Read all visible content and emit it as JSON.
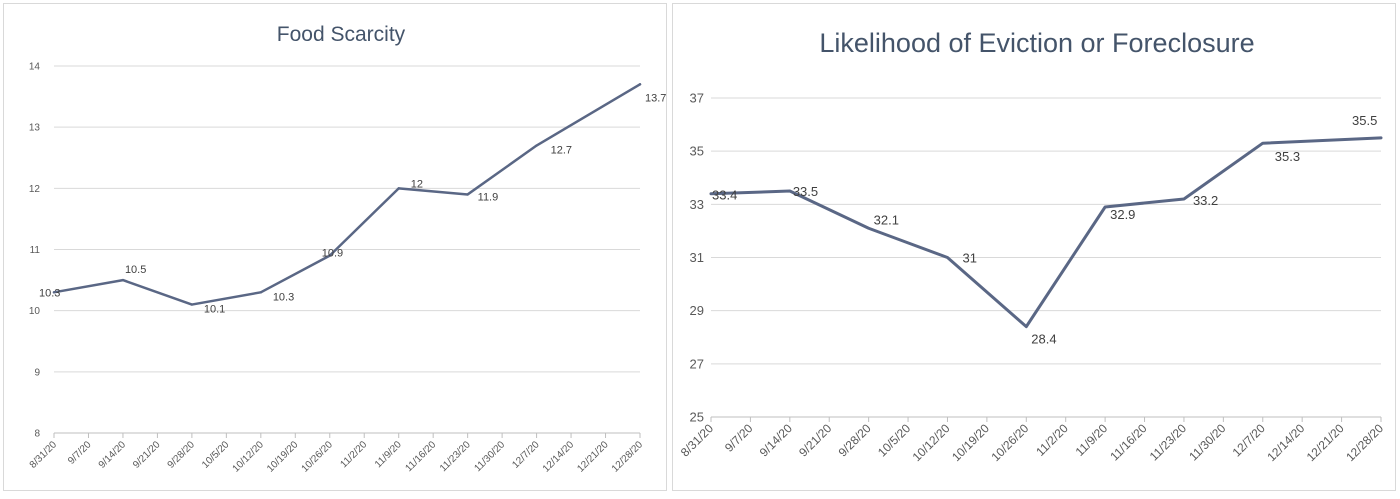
{
  "line_color": "#5a6785",
  "chart_data": [
    {
      "type": "line",
      "title": "Food Scarcity",
      "xlabel": "",
      "ylabel": "",
      "ylim": [
        8,
        14
      ],
      "yticks": [
        8,
        9,
        10,
        11,
        12,
        13,
        14
      ],
      "grid": true,
      "categories": [
        "8/31/20",
        "9/7/20",
        "9/14/20",
        "9/21/20",
        "9/28/20",
        "10/5/20",
        "10/12/20",
        "10/19/20",
        "10/26/20",
        "11/2/20",
        "11/9/20",
        "11/16/20",
        "11/23/20",
        "11/30/20",
        "12/7/20",
        "12/14/20",
        "12/21/20",
        "12/28/20"
      ],
      "points": [
        {
          "x": "8/31/20",
          "y": 10.3,
          "label": "10.3"
        },
        {
          "x": "9/14/20",
          "y": 10.5,
          "label": "10.5"
        },
        {
          "x": "9/28/20",
          "y": 10.1,
          "label": "10.1"
        },
        {
          "x": "10/12/20",
          "y": 10.3,
          "label": "10.3"
        },
        {
          "x": "10/26/20",
          "y": 10.9,
          "label": "10.9"
        },
        {
          "x": "11/9/20",
          "y": 12,
          "label": "12"
        },
        {
          "x": "11/23/20",
          "y": 11.9,
          "label": "11.9"
        },
        {
          "x": "12/7/20",
          "y": 12.7,
          "label": "12.7"
        },
        {
          "x": "12/28/20",
          "y": 13.7,
          "label": "13.7"
        }
      ]
    },
    {
      "type": "line",
      "title": "Likelihood of Eviction or Foreclosure",
      "xlabel": "",
      "ylabel": "",
      "ylim": [
        25,
        37
      ],
      "yticks": [
        25,
        27,
        29,
        31,
        33,
        35,
        37
      ],
      "grid": true,
      "categories": [
        "8/31/20",
        "9/7/20",
        "9/14/20",
        "9/21/20",
        "9/28/20",
        "10/5/20",
        "10/12/20",
        "10/19/20",
        "10/26/20",
        "11/2/20",
        "11/9/20",
        "11/16/20",
        "11/23/20",
        "11/30/20",
        "12/7/20",
        "12/14/20",
        "12/21/20",
        "12/28/20"
      ],
      "points": [
        {
          "x": "8/31/20",
          "y": 33.4,
          "label": "33.4"
        },
        {
          "x": "9/14/20",
          "y": 33.5,
          "label": "33.5"
        },
        {
          "x": "9/28/20",
          "y": 32.1,
          "label": "32.1"
        },
        {
          "x": "10/12/20",
          "y": 31,
          "label": "31"
        },
        {
          "x": "10/26/20",
          "y": 28.4,
          "label": "28.4"
        },
        {
          "x": "11/9/20",
          "y": 32.9,
          "label": "32.9"
        },
        {
          "x": "11/23/20",
          "y": 33.2,
          "label": "33.2"
        },
        {
          "x": "12/7/20",
          "y": 35.3,
          "label": "35.3"
        },
        {
          "x": "12/28/20",
          "y": 35.5,
          "label": "35.5"
        }
      ]
    }
  ]
}
